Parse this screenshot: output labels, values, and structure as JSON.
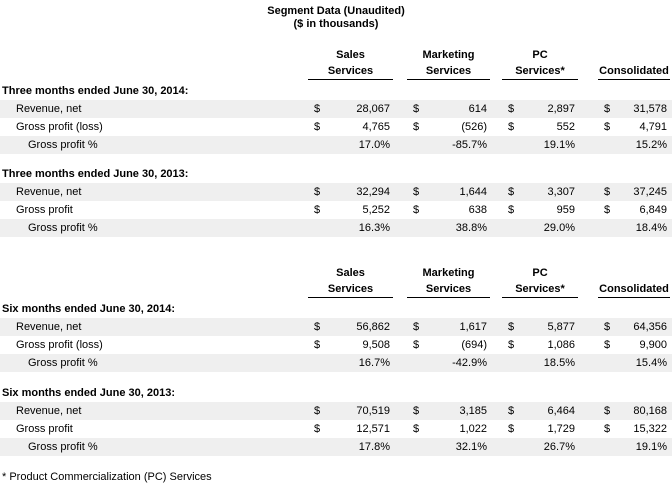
{
  "title": {
    "line1": "Segment Data (Unaudited)",
    "line2": "($ in thousands)"
  },
  "currency_symbol": "$",
  "columns": [
    {
      "line1": "Sales",
      "line2": "Services"
    },
    {
      "line1": "Marketing",
      "line2": "Services"
    },
    {
      "line1": "PC",
      "line2": "Services*"
    },
    {
      "line1": "",
      "line2": "Consolidated"
    }
  ],
  "sections": [
    {
      "heading": "Three months ended June 30, 2014:",
      "rows": [
        {
          "label": "Revenue, net",
          "values": [
            "28,067",
            "614",
            "2,897",
            "31,578"
          ]
        },
        {
          "label": "Gross profit (loss)",
          "values": [
            "4,765",
            "(526)",
            "552",
            "4,791"
          ]
        },
        {
          "label": "Gross profit %",
          "values": [
            "17.0%",
            "-85.7%",
            "19.1%",
            "15.2%"
          ]
        }
      ]
    },
    {
      "heading": "Three months ended June 30, 2013:",
      "rows": [
        {
          "label": "Revenue, net",
          "values": [
            "32,294",
            "1,644",
            "3,307",
            "37,245"
          ]
        },
        {
          "label": "Gross profit",
          "values": [
            "5,252",
            "638",
            "959",
            "6,849"
          ]
        },
        {
          "label": "Gross profit %",
          "values": [
            "16.3%",
            "38.8%",
            "29.0%",
            "18.4%"
          ]
        }
      ]
    },
    {
      "heading": "Six months ended June 30, 2014:",
      "rows": [
        {
          "label": "Revenue, net",
          "values": [
            "56,862",
            "1,617",
            "5,877",
            "64,356"
          ]
        },
        {
          "label": "Gross profit (loss)",
          "values": [
            "9,508",
            "(694)",
            "1,086",
            "9,900"
          ]
        },
        {
          "label": "Gross profit %",
          "values": [
            "16.7%",
            "-42.9%",
            "18.5%",
            "15.4%"
          ]
        }
      ]
    },
    {
      "heading": "Six months ended June 30, 2013:",
      "rows": [
        {
          "label": "Revenue, net",
          "values": [
            "70,519",
            "3,185",
            "6,464",
            "80,168"
          ]
        },
        {
          "label": "Gross profit",
          "values": [
            "12,571",
            "1,022",
            "1,729",
            "15,322"
          ]
        },
        {
          "label": "Gross profit %",
          "values": [
            "17.8%",
            "32.1%",
            "26.7%",
            "19.1%"
          ]
        }
      ]
    }
  ],
  "footnote": "* Product Commercialization (PC) Services",
  "colors": {
    "row_shade": "#efefef",
    "text": "#000000",
    "rule": "#000000"
  }
}
